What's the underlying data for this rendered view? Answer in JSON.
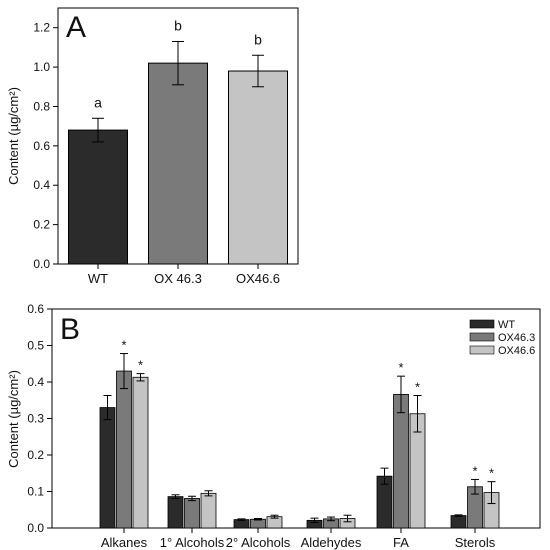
{
  "colors": {
    "WT": "#2b2b2b",
    "OX46.3": "#7a7a7a",
    "OX46.6": "#c4c4c4"
  },
  "chart_data": [
    {
      "type": "bar",
      "panel": "A",
      "categories": [
        "WT",
        "OX 46.3",
        "OX46.6"
      ],
      "values": [
        0.68,
        1.02,
        0.98
      ],
      "errors": [
        0.06,
        0.11,
        0.08
      ],
      "letters": [
        "a",
        "b",
        "b"
      ],
      "ylabel": "Content (µg/cm²)",
      "ylim": [
        0.0,
        1.3
      ],
      "yticks": [
        "0.0",
        "0.2",
        "0.4",
        "0.6",
        "0.8",
        "1.0",
        "1.2"
      ],
      "grid": false
    },
    {
      "type": "bar",
      "panel": "B",
      "categories": [
        "Alkanes",
        "1° Alcohols",
        "2° Alcohols",
        "Aldehydes",
        "FA",
        "Sterols"
      ],
      "series": [
        {
          "name": "WT",
          "values": [
            0.33,
            0.086,
            0.023,
            0.021,
            0.142,
            0.034
          ],
          "errors": [
            0.033,
            0.005,
            0.002,
            0.006,
            0.022,
            0.002
          ],
          "stars": [
            false,
            false,
            false,
            false,
            false,
            false
          ]
        },
        {
          "name": "OX46.3",
          "values": [
            0.43,
            0.081,
            0.024,
            0.025,
            0.366,
            0.113
          ],
          "errors": [
            0.048,
            0.006,
            0.002,
            0.005,
            0.05,
            0.02
          ],
          "stars": [
            true,
            false,
            false,
            false,
            true,
            true
          ]
        },
        {
          "name": "OX46.6",
          "values": [
            0.413,
            0.095,
            0.031,
            0.026,
            0.313,
            0.097
          ],
          "errors": [
            0.01,
            0.007,
            0.004,
            0.009,
            0.05,
            0.03
          ],
          "stars": [
            true,
            false,
            false,
            false,
            true,
            true
          ]
        }
      ],
      "star_text": "*",
      "ylabel": "Content (µg/cm²)",
      "ylim": [
        0.0,
        0.6
      ],
      "yticks": [
        "0.0",
        "0.1",
        "0.2",
        "0.3",
        "0.4",
        "0.5",
        "0.6"
      ],
      "legend": "top-right",
      "grid": false
    }
  ]
}
